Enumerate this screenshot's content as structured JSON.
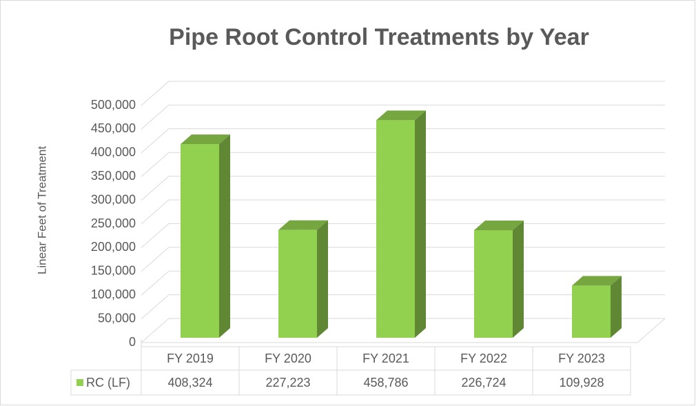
{
  "chart_data": {
    "type": "bar3d",
    "title": "Pipe Root Control Treatments by Year",
    "y_label": "Linear Feet of Treatment",
    "categories": [
      "FY 2019",
      "FY 2020",
      "FY 2021",
      "FY 2022",
      "FY 2023"
    ],
    "series": [
      {
        "name": "RC (LF)",
        "color": "#92d050",
        "values": [
          408324,
          227223,
          458786,
          226724,
          109928
        ],
        "value_labels": [
          "408,324",
          "227,223",
          "458,786",
          "226,724",
          "109,928"
        ]
      }
    ],
    "ylim": [
      0,
      500000
    ],
    "yticks": [
      0,
      {
        "value": 50000,
        "label": "50,000"
      },
      {
        "value": 100000,
        "label": "100,000"
      },
      {
        "value": 150000,
        "label": "150,000"
      },
      {
        "value": 200000,
        "label": "200,000"
      },
      {
        "value": 250000,
        "label": "250,000"
      },
      {
        "value": 300000,
        "label": "300,000"
      },
      {
        "value": 350000,
        "label": "350,000"
      },
      {
        "value": 400000,
        "label": "400,000"
      },
      {
        "value": 450000,
        "label": "450,000"
      },
      {
        "value": 500000,
        "label": "500,000"
      }
    ],
    "grid": true
  }
}
